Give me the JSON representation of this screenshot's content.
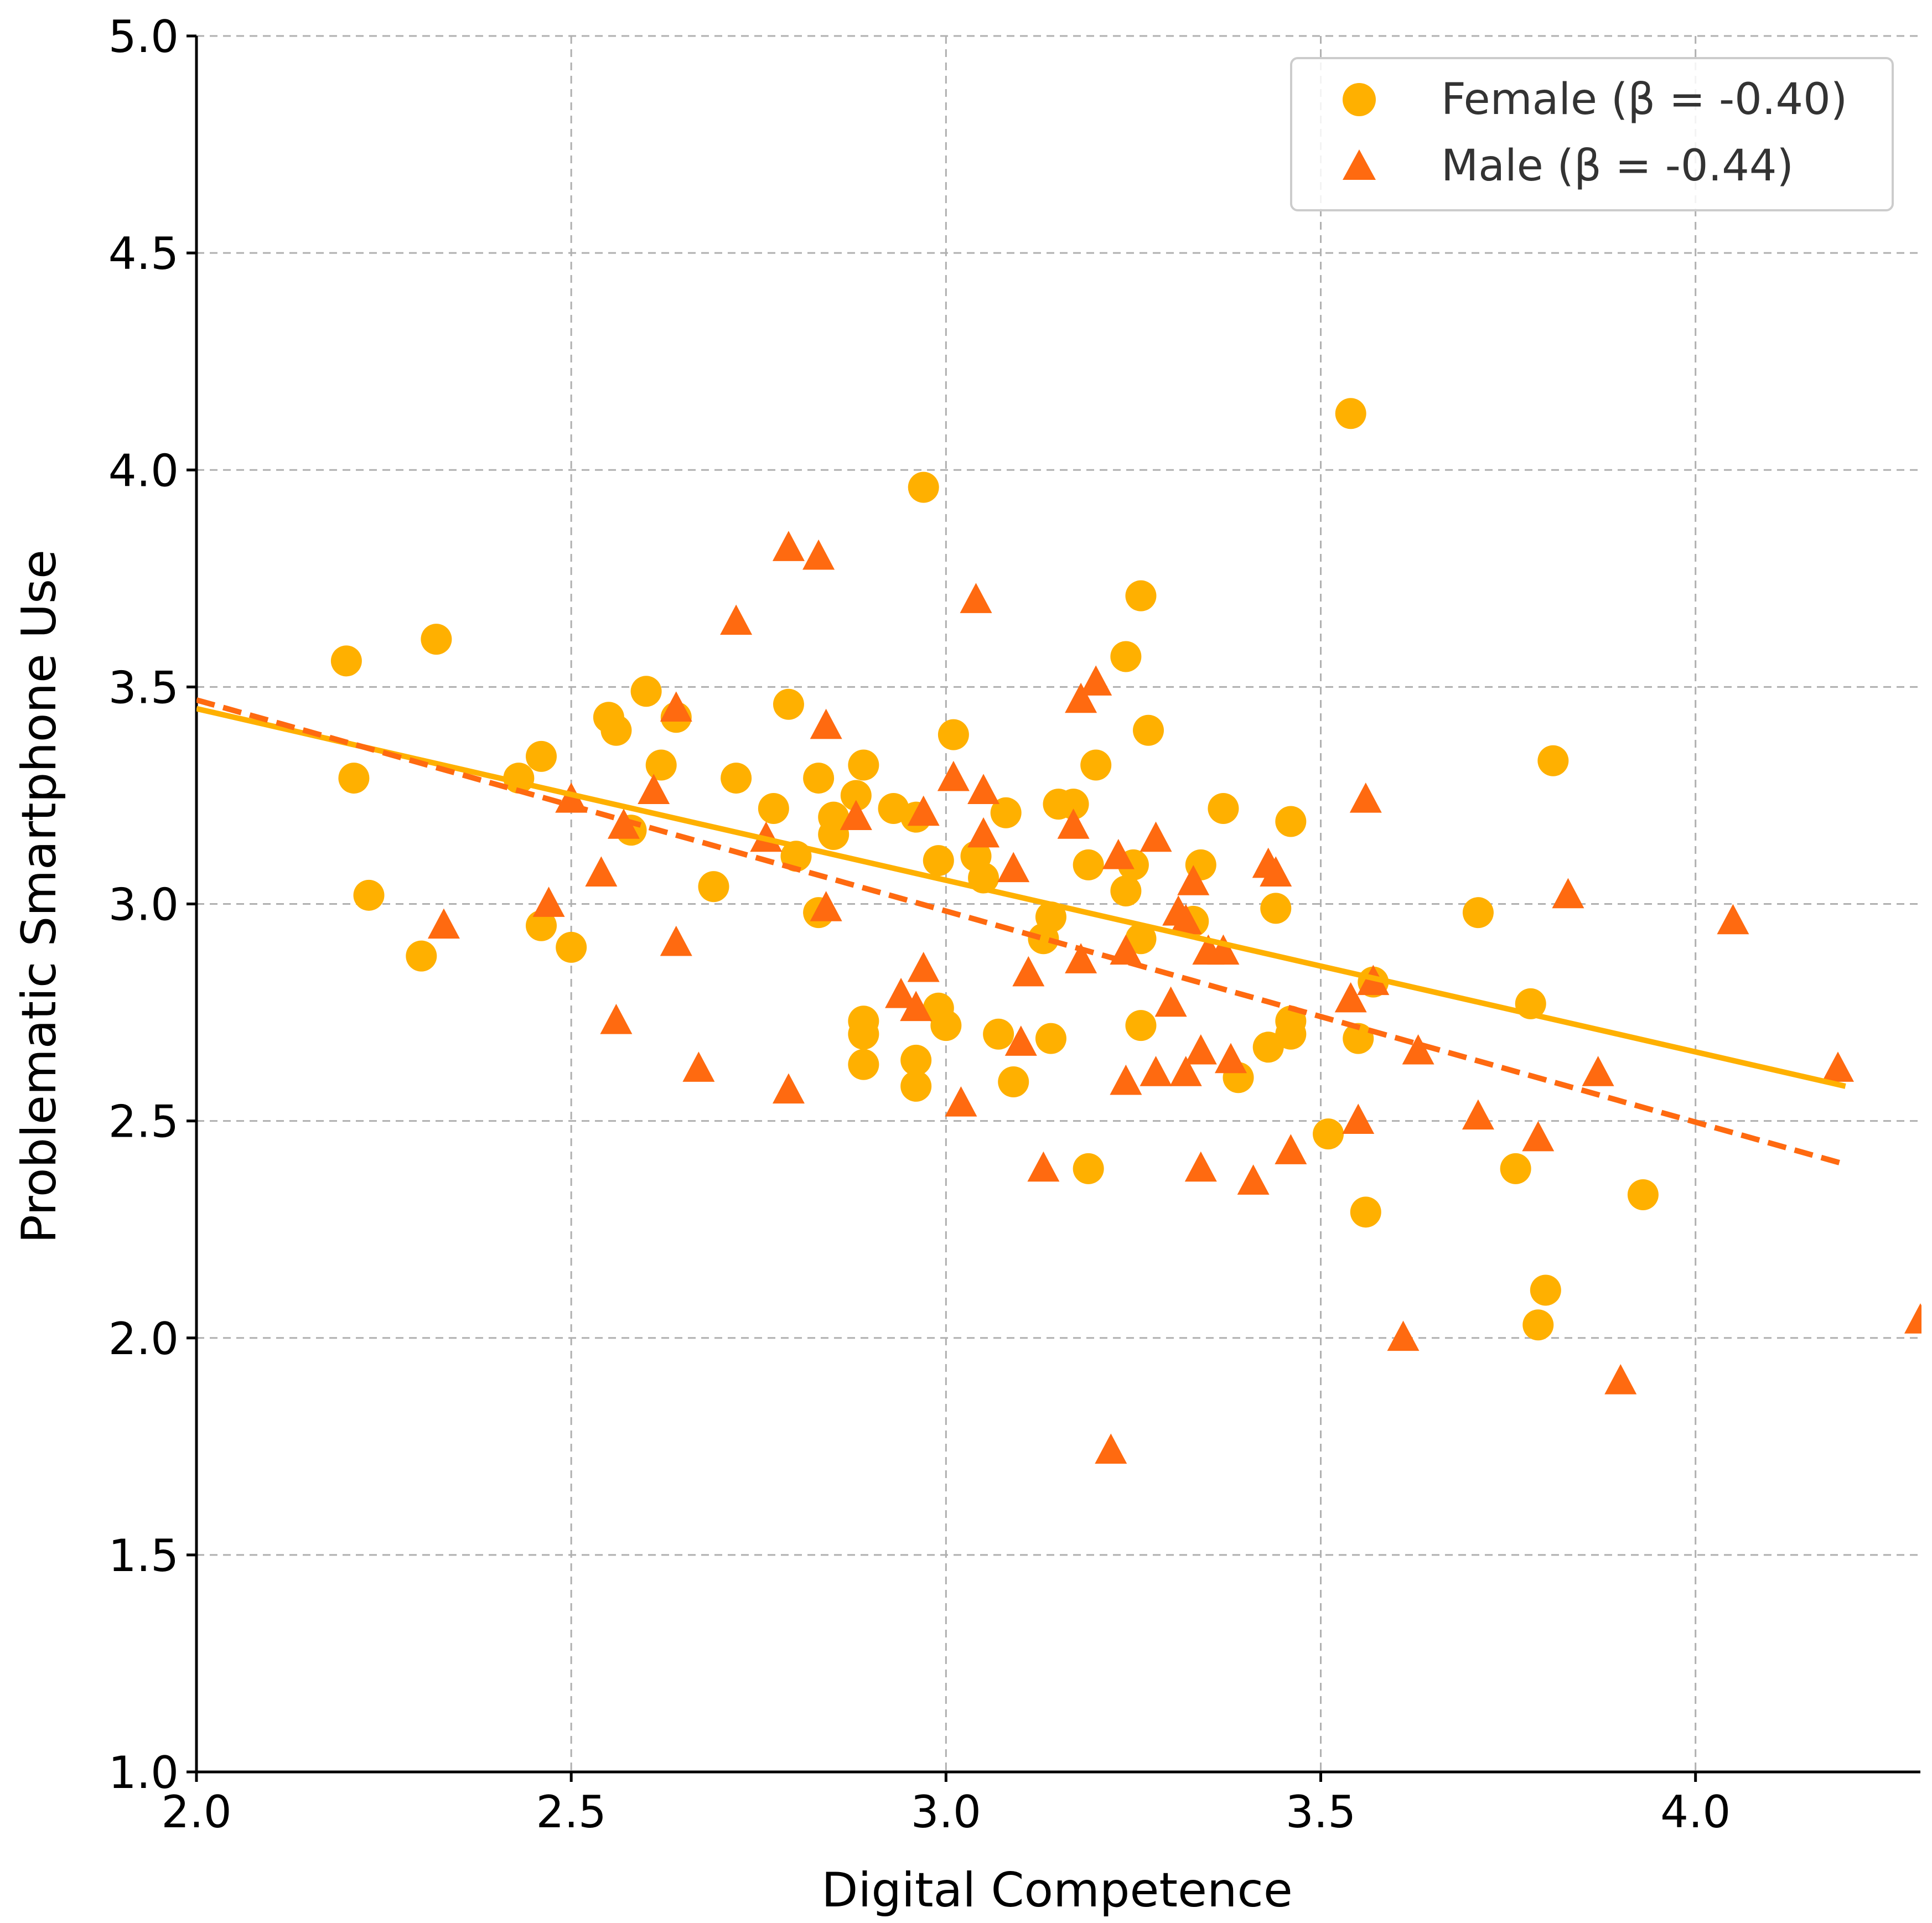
{
  "chart_data": {
    "type": "scatter",
    "title": "",
    "xlabel": "Digital Competence",
    "ylabel": "Problematic Smartphone Use",
    "xlim": [
      2.0,
      4.3
    ],
    "ylim": [
      1.0,
      5.0
    ],
    "xticks": [
      2.0,
      2.5,
      3.0,
      3.5,
      4.0
    ],
    "yticks": [
      1.0,
      1.5,
      2.0,
      2.5,
      3.0,
      3.5,
      4.0,
      4.5,
      5.0
    ],
    "xtick_labels": [
      "2.0",
      "2.5",
      "3.0",
      "3.5",
      "4.0"
    ],
    "ytick_labels": [
      "1.0",
      "1.5",
      "2.0",
      "2.5",
      "3.0",
      "3.5",
      "4.0",
      "4.5",
      "5.0"
    ],
    "grid": true,
    "legend_position": "top-right",
    "series": [
      {
        "name": "Female (β = -0.40)",
        "marker": "circle",
        "color": "#FFB000",
        "fit": {
          "style": "solid",
          "x": [
            2.0,
            4.2
          ],
          "y": [
            3.45,
            2.58
          ]
        },
        "points": [
          [
            2.2,
            3.56
          ],
          [
            2.21,
            3.29
          ],
          [
            2.23,
            3.02
          ],
          [
            2.3,
            2.88
          ],
          [
            2.32,
            3.61
          ],
          [
            2.43,
            3.29
          ],
          [
            2.46,
            3.34
          ],
          [
            2.46,
            2.95
          ],
          [
            2.5,
            2.9
          ],
          [
            2.55,
            3.43
          ],
          [
            2.56,
            3.4
          ],
          [
            2.58,
            3.17
          ],
          [
            2.6,
            3.49
          ],
          [
            2.62,
            3.32
          ],
          [
            2.64,
            3.43
          ],
          [
            2.69,
            3.04
          ],
          [
            2.72,
            3.29
          ],
          [
            2.77,
            3.22
          ],
          [
            2.79,
            3.46
          ],
          [
            2.8,
            3.11
          ],
          [
            2.83,
            3.29
          ],
          [
            2.83,
            2.98
          ],
          [
            2.85,
            3.2
          ],
          [
            2.85,
            3.16
          ],
          [
            2.88,
            3.25
          ],
          [
            2.89,
            3.32
          ],
          [
            2.89,
            2.73
          ],
          [
            2.89,
            2.7
          ],
          [
            2.89,
            2.63
          ],
          [
            2.93,
            3.22
          ],
          [
            2.96,
            3.2
          ],
          [
            2.96,
            2.64
          ],
          [
            2.96,
            2.58
          ],
          [
            2.97,
            3.96
          ],
          [
            2.99,
            3.1
          ],
          [
            2.99,
            2.76
          ],
          [
            3.0,
            2.72
          ],
          [
            3.01,
            3.39
          ],
          [
            3.04,
            3.11
          ],
          [
            3.05,
            3.06
          ],
          [
            3.07,
            2.7
          ],
          [
            3.08,
            3.21
          ],
          [
            3.09,
            2.59
          ],
          [
            3.13,
            2.92
          ],
          [
            3.14,
            2.97
          ],
          [
            3.14,
            2.69
          ],
          [
            3.15,
            3.23
          ],
          [
            3.17,
            3.23
          ],
          [
            3.19,
            3.09
          ],
          [
            3.19,
            2.39
          ],
          [
            3.2,
            3.32
          ],
          [
            3.24,
            3.57
          ],
          [
            3.24,
            3.03
          ],
          [
            3.25,
            3.09
          ],
          [
            3.26,
            2.92
          ],
          [
            3.26,
            3.71
          ],
          [
            3.26,
            2.72
          ],
          [
            3.27,
            3.4
          ],
          [
            3.33,
            2.96
          ],
          [
            3.34,
            3.09
          ],
          [
            3.37,
            3.22
          ],
          [
            3.39,
            2.6
          ],
          [
            3.43,
            2.67
          ],
          [
            3.44,
            2.99
          ],
          [
            3.46,
            2.7
          ],
          [
            3.46,
            2.73
          ],
          [
            3.46,
            3.19
          ],
          [
            3.51,
            2.47
          ],
          [
            3.54,
            4.13
          ],
          [
            3.55,
            2.69
          ],
          [
            3.56,
            2.29
          ],
          [
            3.57,
            2.82
          ],
          [
            3.71,
            2.98
          ],
          [
            3.76,
            2.39
          ],
          [
            3.78,
            2.77
          ],
          [
            3.79,
            2.03
          ],
          [
            3.8,
            2.11
          ],
          [
            3.81,
            3.33
          ],
          [
            3.93,
            2.33
          ]
        ]
      },
      {
        "name": "Male (β = -0.44)",
        "marker": "triangle",
        "color": "#FF6A10",
        "fit": {
          "style": "dashed",
          "x": [
            2.0,
            4.2
          ],
          "y": [
            3.47,
            2.4
          ]
        },
        "points": [
          [
            2.33,
            2.95
          ],
          [
            2.47,
            3.0
          ],
          [
            2.5,
            3.24
          ],
          [
            2.54,
            3.07
          ],
          [
            2.56,
            2.73
          ],
          [
            2.57,
            3.18
          ],
          [
            2.61,
            3.26
          ],
          [
            2.64,
            3.45
          ],
          [
            2.64,
            2.91
          ],
          [
            2.67,
            2.62
          ],
          [
            2.72,
            3.65
          ],
          [
            2.76,
            3.15
          ],
          [
            2.79,
            3.82
          ],
          [
            2.79,
            2.57
          ],
          [
            2.83,
            3.8
          ],
          [
            2.84,
            3.41
          ],
          [
            2.84,
            2.99
          ],
          [
            2.88,
            3.2
          ],
          [
            2.94,
            2.79
          ],
          [
            2.96,
            2.76
          ],
          [
            2.97,
            2.85
          ],
          [
            2.97,
            3.21
          ],
          [
            3.01,
            3.29
          ],
          [
            3.02,
            2.54
          ],
          [
            3.04,
            3.7
          ],
          [
            3.05,
            3.26
          ],
          [
            3.05,
            3.16
          ],
          [
            3.09,
            3.08
          ],
          [
            3.1,
            2.68
          ],
          [
            3.11,
            2.84
          ],
          [
            3.13,
            2.39
          ],
          [
            3.17,
            3.18
          ],
          [
            3.18,
            2.87
          ],
          [
            3.18,
            3.47
          ],
          [
            3.2,
            3.51
          ],
          [
            3.22,
            1.74
          ],
          [
            3.23,
            3.11
          ],
          [
            3.24,
            2.89
          ],
          [
            3.24,
            2.59
          ],
          [
            3.28,
            3.15
          ],
          [
            3.28,
            2.61
          ],
          [
            3.3,
            2.77
          ],
          [
            3.31,
            2.98
          ],
          [
            3.32,
            2.61
          ],
          [
            3.32,
            2.96
          ],
          [
            3.33,
            3.05
          ],
          [
            3.34,
            2.66
          ],
          [
            3.34,
            2.39
          ],
          [
            3.35,
            2.89
          ],
          [
            3.37,
            2.89
          ],
          [
            3.38,
            2.64
          ],
          [
            3.41,
            2.36
          ],
          [
            3.43,
            3.09
          ],
          [
            3.44,
            3.07
          ],
          [
            3.46,
            2.43
          ],
          [
            3.54,
            2.78
          ],
          [
            3.55,
            2.5
          ],
          [
            3.56,
            3.24
          ],
          [
            3.57,
            2.82
          ],
          [
            3.61,
            2.0
          ],
          [
            3.63,
            2.66
          ],
          [
            3.71,
            2.51
          ],
          [
            3.79,
            2.46
          ],
          [
            3.83,
            3.02
          ],
          [
            3.87,
            2.61
          ],
          [
            3.9,
            1.9
          ],
          [
            4.05,
            2.96
          ],
          [
            4.19,
            2.62
          ],
          [
            4.3,
            2.04
          ]
        ]
      }
    ]
  },
  "legend": {
    "female_label": "Female (β = -0.40)",
    "male_label": "Male (β = -0.44)"
  }
}
